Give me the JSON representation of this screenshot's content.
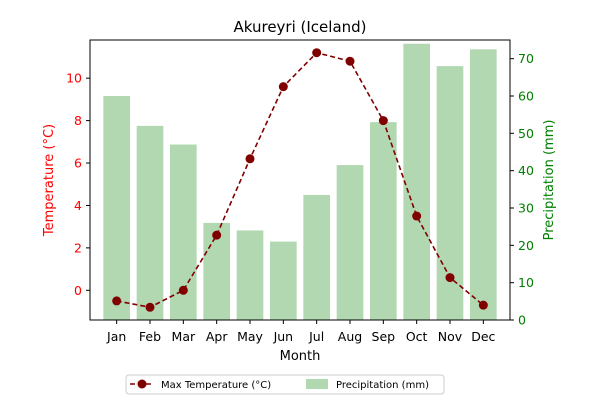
{
  "chart_data": {
    "type": "bar+line",
    "title": "Akureyri (Iceland)",
    "xlabel": "Month",
    "categories": [
      "Jan",
      "Feb",
      "Mar",
      "Apr",
      "May",
      "Jun",
      "Jul",
      "Aug",
      "Sep",
      "Oct",
      "Nov",
      "Dec"
    ],
    "y_left": {
      "label": "Temperature (°C)",
      "range": [
        -1.4,
        11.8
      ],
      "ticks": [
        0,
        2,
        4,
        6,
        8,
        10
      ],
      "color": "#ff0000"
    },
    "y_right": {
      "label": "Precipitation (mm)",
      "range": [
        0,
        75
      ],
      "ticks": [
        0,
        10,
        20,
        30,
        40,
        50,
        60,
        70
      ],
      "color": "#008000"
    },
    "series": [
      {
        "name": "Max Temperature (°C)",
        "type": "line",
        "axis": "left",
        "color": "#800000",
        "dashed": true,
        "values": [
          -0.5,
          -0.8,
          0.0,
          2.6,
          6.2,
          9.6,
          11.2,
          10.8,
          8.0,
          3.5,
          0.6,
          -0.7
        ]
      },
      {
        "name": "Precipitation (mm)",
        "type": "bar",
        "axis": "right",
        "color": "#b2d8b2",
        "values": [
          60,
          52,
          47,
          26,
          24,
          21,
          33.5,
          41.5,
          53,
          74,
          68,
          72.5
        ]
      }
    ],
    "legend": "bottom-center",
    "grid": false
  }
}
